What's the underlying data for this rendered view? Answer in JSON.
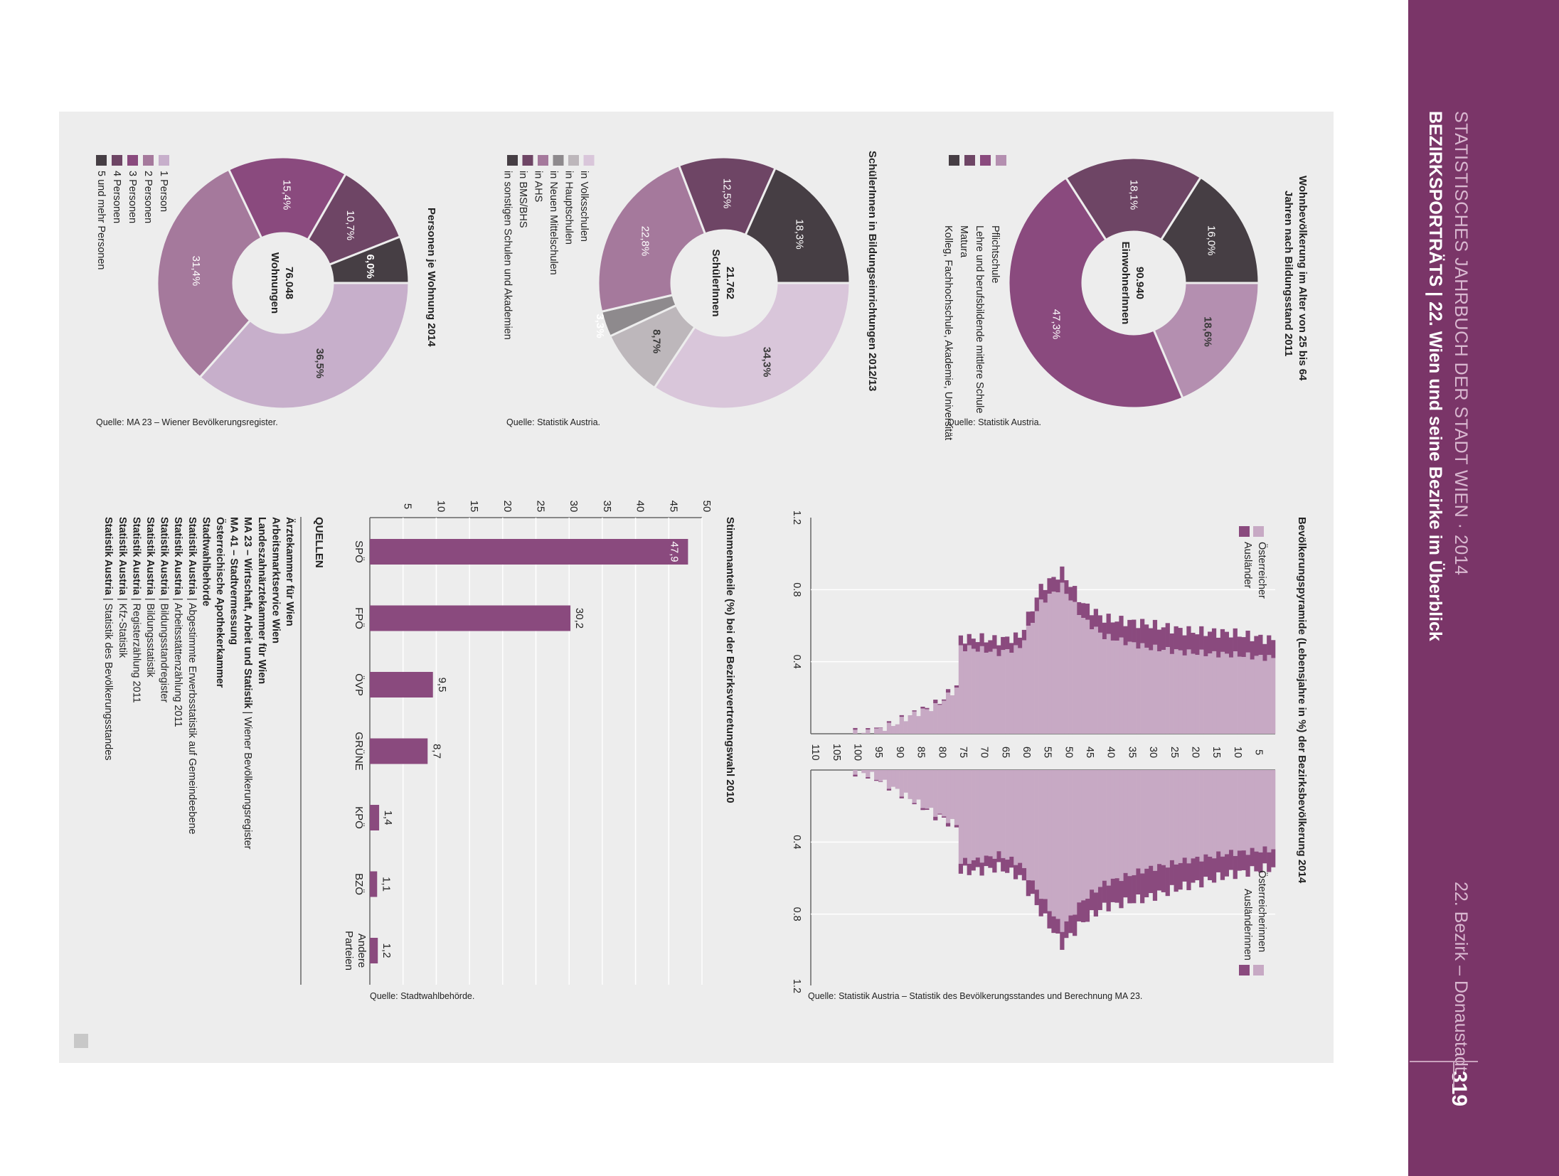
{
  "header": {
    "title": "STATISTISCHES JAHRBUCH DER STADT WIEN · 2014",
    "subtitle": "BEZIRKSPORTRÄTS | 22. Wien und seine Bezirke im Überblick",
    "district": "22. Bezirk – Donaustadt",
    "page_number": "319",
    "band_color": "#7a3568"
  },
  "chart_data": [
    {
      "type": "pie",
      "title": "Wohnbevölkerung im Alter von 25 bis 64 Jahren nach Bildungsstand 2011",
      "center_value": "90.940",
      "center_label": "EinwohnerInnen",
      "slices": [
        {
          "label": "Pflichtschule",
          "value": 18.6,
          "display": "18,6%",
          "color": "#b48fb0"
        },
        {
          "label": "Lehre und berufsbildende mittlere Schule",
          "value": 47.3,
          "display": "47,3%",
          "color": "#8a4a7e"
        },
        {
          "label": "Matura",
          "value": 18.1,
          "display": "18,1%",
          "color": "#6e4565"
        },
        {
          "label": "Kolleg, Fachhochschule, Akademie, Universität",
          "value": 16.0,
          "display": "16,0%",
          "color": "#463e44"
        }
      ],
      "source": "Quelle: Statistik Austria."
    },
    {
      "type": "pie",
      "title": "SchülerInnen in Bildungseinrichtungen 2012/13",
      "center_value": "21.762",
      "center_label": "SchülerInnen",
      "slices": [
        {
          "label": "in Volksschulen",
          "value": 34.3,
          "display": "34,3%",
          "color": "#d9c6da"
        },
        {
          "label": "in Hauptschulen",
          "value": 8.7,
          "display": "8,7%",
          "color": "#bdb7bb"
        },
        {
          "label": "in Neuen Mittelschulen",
          "value": 3.3,
          "display": "3,3%",
          "color": "#8e8a8d"
        },
        {
          "label": "in AHS",
          "value": 22.8,
          "display": "22,8%",
          "color": "#a5799c"
        },
        {
          "label": "in BMS/BHS",
          "value": 12.5,
          "display": "12,5%",
          "color": "#6e4565"
        },
        {
          "label": "in sonstigen Schulen und Akademien",
          "value": 18.3,
          "display": "18,3%",
          "color": "#463e44"
        }
      ],
      "source": "Quelle: Statistik Austria."
    },
    {
      "type": "pie",
      "title": "Personen je Wohnung 2014",
      "center_value": "76.048",
      "center_label": "Wohnungen",
      "slices": [
        {
          "label": "1 Person",
          "value": 36.5,
          "display": "36,5%",
          "color": "#c7afcb"
        },
        {
          "label": "2 Personen",
          "value": 31.4,
          "display": "31,4%",
          "color": "#a5799c"
        },
        {
          "label": "3 Personen",
          "value": 15.4,
          "display": "15,4%",
          "color": "#8a4a7e"
        },
        {
          "label": "4 Personen",
          "value": 10.7,
          "display": "10,7%",
          "color": "#6e4565"
        },
        {
          "label": "5 und mehr Personen",
          "value": 6.0,
          "display": "6,0%",
          "color": "#463e44"
        }
      ],
      "source": "Quelle: MA 23 – Wiener Bevölkerungsregister."
    },
    {
      "type": "bar",
      "title": "Bevölkerungspyramide (Lebensjahre in %) der Bezirksbevölkerung 2014",
      "x_ticks": [
        "5",
        "10",
        "15",
        "20",
        "25",
        "30",
        "35",
        "40",
        "45",
        "50",
        "55",
        "60",
        "65",
        "70",
        "75",
        "80",
        "85",
        "90",
        "95",
        "100",
        "105",
        "110"
      ],
      "y_ticks": [
        "1.2",
        "0.8",
        "0.4"
      ],
      "xlim": [
        0,
        110
      ],
      "ylim": [
        0,
        1.2
      ],
      "male_legend": [
        "Österreicher",
        "Ausländer"
      ],
      "female_legend": [
        "Österreicherinnen",
        "Ausländerinnen"
      ],
      "colors": {
        "citizens": "#c7a9c4",
        "foreigners": "#8a4a7e"
      },
      "male_anchors": [
        [
          0,
          0.42,
          0.1
        ],
        [
          10,
          0.44,
          0.12
        ],
        [
          20,
          0.45,
          0.12
        ],
        [
          30,
          0.48,
          0.13
        ],
        [
          40,
          0.54,
          0.1
        ],
        [
          45,
          0.64,
          0.08
        ],
        [
          50,
          0.82,
          0.08
        ],
        [
          55,
          0.73,
          0.08
        ],
        [
          60,
          0.48,
          0.06
        ],
        [
          65,
          0.45,
          0.07
        ],
        [
          70,
          0.47,
          0.06
        ],
        [
          74,
          0.48,
          0.05
        ],
        [
          75,
          0.25,
          0.01
        ],
        [
          80,
          0.15,
          0.01
        ],
        [
          85,
          0.11,
          0.0
        ],
        [
          90,
          0.05,
          0.0
        ],
        [
          95,
          0.01,
          0.0
        ],
        [
          100,
          0.0,
          0.0
        ]
      ],
      "female_anchors": [
        [
          0,
          0.44,
          0.1
        ],
        [
          10,
          0.46,
          0.12
        ],
        [
          20,
          0.5,
          0.14
        ],
        [
          30,
          0.55,
          0.16
        ],
        [
          40,
          0.63,
          0.13
        ],
        [
          45,
          0.72,
          0.12
        ],
        [
          50,
          0.88,
          0.09
        ],
        [
          55,
          0.7,
          0.09
        ],
        [
          60,
          0.52,
          0.07
        ],
        [
          65,
          0.47,
          0.07
        ],
        [
          70,
          0.5,
          0.06
        ],
        [
          74,
          0.51,
          0.05
        ],
        [
          75,
          0.3,
          0.01
        ],
        [
          80,
          0.24,
          0.01
        ],
        [
          85,
          0.17,
          0.0
        ],
        [
          90,
          0.1,
          0.0
        ],
        [
          95,
          0.03,
          0.0
        ],
        [
          100,
          0.0,
          0.0
        ]
      ],
      "source": "Quelle: Statistik Austria – Statistik des Bevölkerungsstandes und Berechnung MA 23."
    },
    {
      "type": "bar",
      "title": "Stimmenanteile (%) bei der Bezirksvertretungswahl 2010",
      "categories": [
        "SPÖ",
        "FPÖ",
        "ÖVP",
        "GRÜNE",
        "KPÖ",
        "BZÖ",
        "Andere Parteien"
      ],
      "values": [
        47.9,
        30.2,
        9.5,
        8.7,
        1.4,
        1.1,
        1.2
      ],
      "value_labels": [
        "47,9",
        "30,2",
        "9,5",
        "8,7",
        "1,4",
        "1,1",
        "1,2"
      ],
      "ticks": [
        "5",
        "10",
        "15",
        "20",
        "25",
        "30",
        "35",
        "40",
        "45",
        "50"
      ],
      "ylim": [
        0,
        50
      ],
      "color": "#8a4a7e",
      "source": "Quelle: Stadtwahlbehörde."
    }
  ],
  "sources": {
    "title": "QUELLEN",
    "items": [
      {
        "bold": "Ärztekammer für Wien",
        "rest": ""
      },
      {
        "bold": "Arbeitsmarktservice Wien",
        "rest": ""
      },
      {
        "bold": "Landeszahnärztekammer für Wien",
        "rest": ""
      },
      {
        "bold": "MA 23 – Wirtschaft, Arbeit und Statistik",
        "rest": " | Wiener Bevölkerungsregister"
      },
      {
        "bold": "MA 41 – Stadtvermessung",
        "rest": ""
      },
      {
        "bold": "Österreichische Apothekerkammer",
        "rest": ""
      },
      {
        "bold": "Stadtwahlbehörde",
        "rest": ""
      },
      {
        "bold": "Statistik Austria",
        "rest": " | Abgestimmte Erwerbsstatistik auf Gemeindeebene"
      },
      {
        "bold": "Statistik Austria",
        "rest": " | Arbeitsstättenzählung 2011"
      },
      {
        "bold": "Statistik Austria",
        "rest": " | Bildungsstandregister"
      },
      {
        "bold": "Statistik Austria",
        "rest": " | Bildungsstatistik"
      },
      {
        "bold": "Statistik Austria",
        "rest": " | Registerzählung 2011"
      },
      {
        "bold": "Statistik Austria",
        "rest": " | Kfz-Statistik"
      },
      {
        "bold": "Statistik Austria",
        "rest": " | Statistik des Bevölkerungsstandes"
      }
    ]
  }
}
